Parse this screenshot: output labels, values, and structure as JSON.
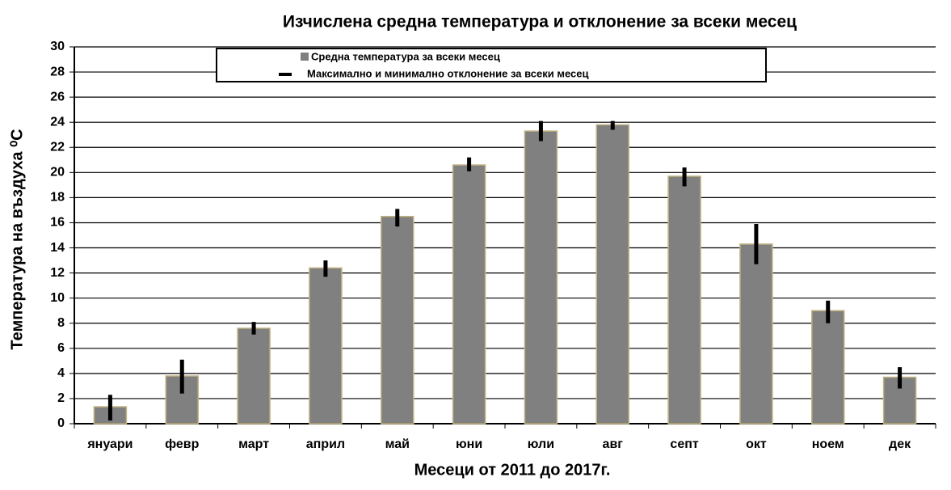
{
  "chart_data": {
    "type": "bar",
    "title": "Изчислена средна температура и отклонение за всеки месец",
    "xlabel": "Месеци от 2011 до 2017г.",
    "ylabel": "Температура на въздуха ⁰C",
    "categories": [
      "януари",
      "февр",
      "март",
      "април",
      "май",
      "юни",
      "юли",
      "авг",
      "септ",
      "окт",
      "ноем",
      "дек"
    ],
    "series": [
      {
        "name": "Средна температура  за всеки месец",
        "color": "#808080",
        "values": [
          1.35,
          3.8,
          7.6,
          12.4,
          16.5,
          20.6,
          23.3,
          23.8,
          19.7,
          14.3,
          9.0,
          3.7
        ],
        "error_name": "Максимално и минимално отклонение  за всеки месец",
        "error_min": [
          0.25,
          2.4,
          7.1,
          11.7,
          15.7,
          20.1,
          22.5,
          23.4,
          18.9,
          12.7,
          8.0,
          2.8
        ],
        "error_max": [
          2.3,
          5.1,
          8.1,
          13.0,
          17.1,
          21.2,
          24.1,
          24.1,
          20.4,
          15.9,
          9.8,
          4.5
        ]
      }
    ],
    "ylim": [
      0,
      30
    ],
    "yticks": [
      0,
      2,
      4,
      6,
      8,
      10,
      12,
      14,
      16,
      18,
      20,
      22,
      24,
      26,
      28,
      30
    ],
    "grid": true
  }
}
